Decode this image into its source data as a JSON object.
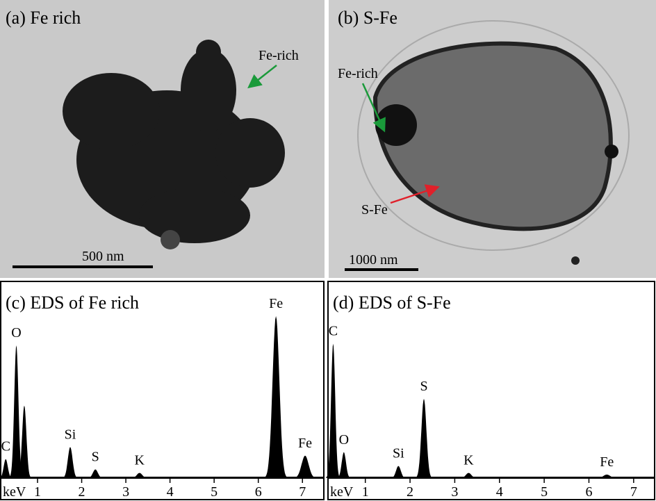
{
  "panels": [
    {
      "label": "(a) Fe rich",
      "annotations": [
        "Fe-rich"
      ],
      "scale_bar": "500 nm"
    },
    {
      "label": "(b) S-Fe",
      "annotations": [
        "Fe-rich",
        "S-Fe"
      ],
      "scale_bar": "1000 nm"
    }
  ],
  "chart_data": [
    {
      "type": "spectrum",
      "title": "(c) EDS of Fe rich",
      "x_label": "keV",
      "color": "#000000",
      "xlim": [
        0.15,
        7.5
      ],
      "ylim": [
        0,
        100
      ],
      "xticks": [
        1,
        2,
        3,
        4,
        5,
        6,
        7
      ],
      "peaks": {
        "labels": [
          "C",
          "O",
          null,
          "Si",
          "S",
          "K",
          "Fe",
          "Fe"
        ],
        "x": [
          0.28,
          0.52,
          0.7,
          1.74,
          2.31,
          3.31,
          6.4,
          7.06
        ],
        "values": [
          11,
          77,
          42,
          18,
          5,
          3,
          94,
          13
        ]
      }
    },
    {
      "type": "spectrum",
      "title": "(d) EDS of S-Fe",
      "x_label": "keV",
      "color": "#000000",
      "xlim": [
        0.15,
        7.5
      ],
      "ylim": [
        0,
        100
      ],
      "xticks": [
        1,
        2,
        3,
        4,
        5,
        6,
        7
      ],
      "peaks": {
        "labels": [
          "C",
          "O",
          "Si",
          "S",
          "K",
          "Fe"
        ],
        "x": [
          0.28,
          0.52,
          1.74,
          2.31,
          3.31,
          6.4
        ],
        "values": [
          78,
          15,
          7,
          46,
          3,
          2
        ]
      }
    }
  ]
}
